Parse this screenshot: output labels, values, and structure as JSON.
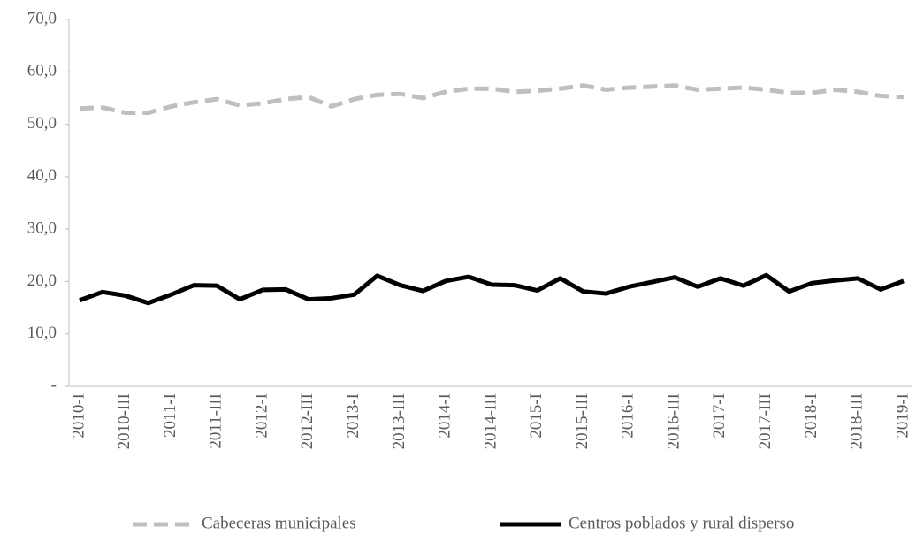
{
  "chart_data": {
    "type": "line",
    "categories": [
      "2010-I",
      null,
      "2010-III",
      null,
      "2011-I",
      null,
      "2011-III",
      null,
      "2012-I",
      null,
      "2012-III",
      null,
      "2013-I",
      null,
      "2013-III",
      null,
      "2014-I",
      null,
      "2014-III",
      null,
      "2015-I",
      null,
      "2015-III",
      null,
      "2016-I",
      null,
      "2016-III",
      null,
      "2017-I",
      null,
      "2017-III",
      null,
      "2018-I",
      null,
      "2018-III",
      null,
      "2019-I"
    ],
    "series": [
      {
        "name": "Cabeceras municipales",
        "color": "#bfbfbf",
        "line_style": "dashed",
        "values": [
          53.0,
          53.2,
          52.2,
          52.2,
          53.4,
          54.2,
          54.8,
          53.6,
          54.0,
          54.8,
          55.2,
          53.4,
          54.8,
          55.6,
          55.8,
          55.0,
          56.2,
          56.8,
          56.8,
          56.2,
          56.4,
          56.8,
          57.4,
          56.6,
          57.0,
          57.2,
          57.4,
          56.6,
          56.8,
          57.0,
          56.6,
          56.0,
          56.0,
          56.6,
          56.2,
          55.4,
          55.2
        ]
      },
      {
        "name": "Centros poblados y rural disperso",
        "color": "#000000",
        "line_style": "solid",
        "values": [
          16.4,
          18.0,
          17.3,
          15.9,
          17.5,
          19.3,
          19.2,
          16.6,
          18.4,
          18.5,
          16.6,
          16.8,
          17.5,
          21.1,
          19.3,
          18.2,
          20.1,
          20.9,
          19.4,
          19.3,
          18.3,
          20.6,
          18.1,
          17.7,
          19.0,
          19.9,
          20.8,
          19.0,
          20.6,
          19.2,
          21.2,
          18.1,
          19.7,
          20.2,
          20.6,
          18.5,
          20.1
        ]
      }
    ],
    "ylim": [
      0,
      70
    ],
    "yticks": [
      {
        "value": 0,
        "label": "-"
      },
      {
        "value": 10,
        "label": "10,0"
      },
      {
        "value": 20,
        "label": "20,0"
      },
      {
        "value": 30,
        "label": "30,0"
      },
      {
        "value": 40,
        "label": "40,0"
      },
      {
        "value": 50,
        "label": "50,0"
      },
      {
        "value": 60,
        "label": "60,0"
      },
      {
        "value": 70,
        "label": "70,0"
      }
    ],
    "legend": "bottom"
  }
}
